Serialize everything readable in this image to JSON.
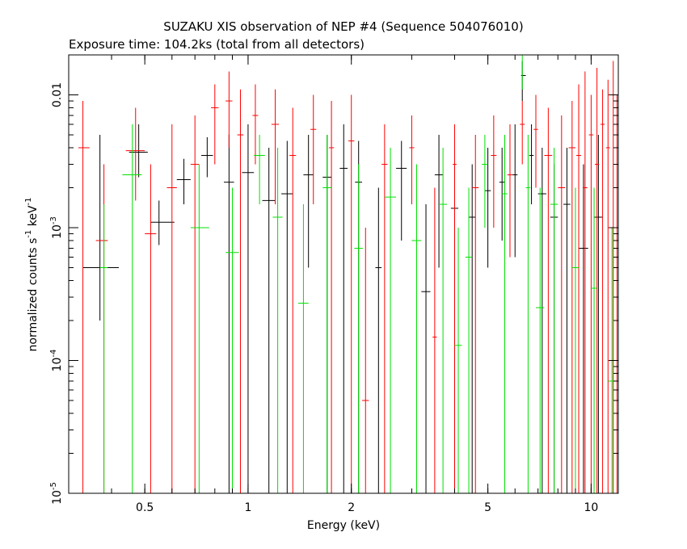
{
  "chart_data": {
    "type": "scatter",
    "title": "SUZAKU XIS observation of NEP #4 (Sequence 504076010)",
    "subtitle": "Exposure time: 104.2ks (total from all detectors)",
    "xlabel": "Energy (keV)",
    "ylabel_parts": [
      "normalized counts s",
      "-1",
      " keV",
      "-1"
    ],
    "xscale": "log",
    "yscale": "log",
    "xlim": [
      0.3,
      12.0
    ],
    "ylim": [
      1e-05,
      0.02
    ],
    "x_major_ticks": [
      {
        "value": 0.5,
        "label": "0.5"
      },
      {
        "value": 1,
        "label": "1"
      },
      {
        "value": 2,
        "label": "2"
      },
      {
        "value": 5,
        "label": "5"
      },
      {
        "value": 10,
        "label": "10"
      }
    ],
    "y_major_ticks": [
      {
        "value": 1e-05,
        "mantissa": "10",
        "exp": "-5"
      },
      {
        "value": 0.0001,
        "mantissa": "10",
        "exp": "-4"
      },
      {
        "value": 0.001,
        "mantissa": "10",
        "exp": "-3"
      },
      {
        "value": 0.01,
        "mantissa": "0.01",
        "exp": ""
      }
    ],
    "series": [
      {
        "color": "#000000",
        "points": [
          [
            0.37,
            0.0005,
            0.33,
            0.42,
            0.0002,
            0.005
          ],
          [
            0.48,
            0.0037,
            0.45,
            0.51,
            0.0024,
            0.006
          ],
          [
            0.55,
            0.0011,
            0.52,
            0.61,
            0.00074,
            0.0016
          ],
          [
            0.65,
            0.0023,
            0.62,
            0.68,
            0.0015,
            0.0033
          ],
          [
            0.76,
            0.0035,
            0.73,
            0.79,
            0.0024,
            0.0048
          ],
          [
            0.88,
            0.0022,
            0.85,
            0.91,
            1e-05,
            0.005
          ],
          [
            1.0,
            0.0026,
            0.96,
            1.04,
            1e-05,
            0.006
          ],
          [
            1.15,
            0.0016,
            1.1,
            1.2,
            1e-05,
            0.004
          ],
          [
            1.3,
            0.0018,
            1.25,
            1.35,
            1e-05,
            0.0045
          ],
          [
            1.5,
            0.0025,
            1.45,
            1.55,
            0.0005,
            0.005
          ],
          [
            1.7,
            0.0024,
            1.65,
            1.75,
            1e-05,
            0.005
          ],
          [
            1.9,
            0.0028,
            1.85,
            1.95,
            1e-05,
            0.006
          ],
          [
            2.1,
            0.0022,
            2.05,
            2.15,
            1e-05,
            0.0045
          ],
          [
            2.4,
            0.0005,
            2.35,
            2.45,
            1e-05,
            0.002
          ],
          [
            2.8,
            0.0028,
            2.7,
            2.9,
            0.0008,
            0.0045
          ],
          [
            3.3,
            0.00033,
            3.2,
            3.4,
            1e-05,
            0.0015
          ],
          [
            3.6,
            0.0025,
            3.5,
            3.7,
            0.0005,
            0.005
          ],
          [
            4.0,
            0.0014,
            3.9,
            4.1,
            1e-05,
            0.003
          ],
          [
            4.5,
            0.0012,
            4.4,
            4.6,
            1e-05,
            0.003
          ],
          [
            5.0,
            0.0019,
            4.9,
            5.1,
            0.0005,
            0.004
          ],
          [
            5.5,
            0.0022,
            5.4,
            5.6,
            0.0008,
            0.004
          ],
          [
            6.0,
            0.0025,
            5.9,
            6.1,
            0.0006,
            0.006
          ],
          [
            6.3,
            0.014,
            6.25,
            6.45,
            0.009,
            0.018
          ],
          [
            6.7,
            0.0035,
            6.6,
            6.8,
            0.0015,
            0.006
          ],
          [
            7.2,
            0.0018,
            7.0,
            7.4,
            1e-05,
            0.004
          ],
          [
            7.8,
            0.0012,
            7.6,
            8.0,
            1e-05,
            0.003
          ],
          [
            8.5,
            0.0015,
            8.3,
            8.7,
            1e-05,
            0.004
          ],
          [
            9.5,
            0.0007,
            9.2,
            9.8,
            1e-05,
            0.003
          ],
          [
            10.5,
            0.0012,
            10.2,
            10.8,
            1e-05,
            0.005
          ]
        ]
      },
      {
        "color": "#ff0000",
        "points": [
          [
            0.33,
            0.004,
            0.32,
            0.345,
            1e-05,
            0.009
          ],
          [
            0.38,
            0.0008,
            0.36,
            0.39,
            1e-05,
            0.003
          ],
          [
            0.47,
            0.0038,
            0.44,
            0.5,
            0.0016,
            0.008
          ],
          [
            0.52,
            0.0009,
            0.5,
            0.54,
            1e-05,
            0.003
          ],
          [
            0.6,
            0.002,
            0.58,
            0.62,
            1e-05,
            0.006
          ],
          [
            0.7,
            0.003,
            0.68,
            0.72,
            1e-05,
            0.007
          ],
          [
            0.8,
            0.008,
            0.78,
            0.82,
            0.003,
            0.012
          ],
          [
            0.88,
            0.009,
            0.86,
            0.9,
            0.004,
            0.015
          ],
          [
            0.95,
            0.005,
            0.93,
            0.97,
            1e-05,
            0.011
          ],
          [
            1.05,
            0.007,
            1.03,
            1.07,
            0.003,
            0.012
          ],
          [
            1.2,
            0.006,
            1.17,
            1.23,
            0.0015,
            0.011
          ],
          [
            1.35,
            0.0035,
            1.32,
            1.38,
            1e-05,
            0.008
          ],
          [
            1.55,
            0.0055,
            1.52,
            1.58,
            0.0015,
            0.01
          ],
          [
            1.75,
            0.004,
            1.72,
            1.78,
            1e-05,
            0.009
          ],
          [
            2.0,
            0.0045,
            1.96,
            2.04,
            1e-05,
            0.01
          ],
          [
            2.2,
            5e-05,
            2.15,
            2.25,
            1e-05,
            0.001
          ],
          [
            2.5,
            0.003,
            2.45,
            2.55,
            1e-05,
            0.006
          ],
          [
            3.0,
            0.004,
            2.95,
            3.05,
            0.0015,
            0.007
          ],
          [
            3.5,
            0.00015,
            3.45,
            3.55,
            1e-05,
            0.002
          ],
          [
            4.0,
            0.003,
            3.95,
            4.05,
            1e-05,
            0.006
          ],
          [
            4.6,
            0.002,
            4.5,
            4.7,
            1e-05,
            0.005
          ],
          [
            5.2,
            0.0035,
            5.1,
            5.3,
            0.001,
            0.007
          ],
          [
            5.8,
            0.0025,
            5.7,
            5.9,
            0.0006,
            0.006
          ],
          [
            6.3,
            0.006,
            6.2,
            6.4,
            0.003,
            0.009
          ],
          [
            6.9,
            0.0055,
            6.8,
            7.0,
            0.002,
            0.01
          ],
          [
            7.5,
            0.0035,
            7.3,
            7.7,
            1e-05,
            0.008
          ],
          [
            8.2,
            0.002,
            8.0,
            8.4,
            1e-05,
            0.007
          ],
          [
            8.8,
            0.004,
            8.6,
            9.0,
            1e-05,
            0.009
          ],
          [
            9.2,
            0.0035,
            9.05,
            9.35,
            1e-05,
            0.012
          ],
          [
            9.6,
            0.002,
            9.45,
            9.75,
            1e-05,
            0.015
          ],
          [
            10.0,
            0.005,
            9.85,
            10.15,
            1e-05,
            0.01
          ],
          [
            10.4,
            0.003,
            10.25,
            10.55,
            1e-05,
            0.016
          ],
          [
            10.8,
            0.006,
            10.65,
            10.95,
            1e-05,
            0.011
          ],
          [
            11.2,
            0.004,
            11.05,
            11.35,
            1e-05,
            0.013
          ],
          [
            11.6,
            0.01,
            11.45,
            11.75,
            1e-05,
            0.018
          ],
          [
            11.9,
            0.007,
            11.8,
            12.0,
            1e-05,
            0.01
          ]
        ]
      },
      {
        "color": "#00e000",
        "points": [
          [
            0.38,
            0.0005,
            0.37,
            0.39,
            1e-05,
            0.0015
          ],
          [
            0.46,
            0.0025,
            0.43,
            0.49,
            1e-05,
            0.006
          ],
          [
            0.72,
            0.001,
            0.68,
            0.77,
            1e-05,
            0.003
          ],
          [
            0.9,
            0.00065,
            0.86,
            0.94,
            1e-05,
            0.002
          ],
          [
            1.08,
            0.0035,
            1.04,
            1.12,
            0.0015,
            0.005
          ],
          [
            1.22,
            0.0012,
            1.18,
            1.26,
            1e-05,
            0.004
          ],
          [
            1.45,
            0.00027,
            1.4,
            1.5,
            1e-05,
            0.0015
          ],
          [
            1.7,
            0.002,
            1.65,
            1.75,
            1e-05,
            0.005
          ],
          [
            2.1,
            0.0007,
            2.04,
            2.16,
            1e-05,
            0.003
          ],
          [
            2.6,
            0.0017,
            2.5,
            2.7,
            1e-05,
            0.004
          ],
          [
            3.1,
            0.0008,
            3.0,
            3.2,
            1e-05,
            0.003
          ],
          [
            3.7,
            0.0015,
            3.6,
            3.8,
            1e-05,
            0.004
          ],
          [
            4.1,
            0.00013,
            4.0,
            4.2,
            1e-05,
            0.001
          ],
          [
            4.4,
            0.0006,
            4.3,
            4.5,
            1e-05,
            0.002
          ],
          [
            4.9,
            0.003,
            4.8,
            5.0,
            0.001,
            0.005
          ],
          [
            5.6,
            0.0018,
            5.5,
            5.7,
            1e-05,
            0.005
          ],
          [
            6.3,
            0.022,
            6.25,
            6.4,
            0.011,
            0.022
          ],
          [
            6.55,
            0.002,
            6.45,
            6.65,
            1e-05,
            0.005
          ],
          [
            7.1,
            0.00025,
            6.9,
            7.3,
            1e-05,
            0.002
          ],
          [
            7.8,
            0.0015,
            7.6,
            8.0,
            1e-05,
            0.004
          ],
          [
            9.0,
            0.0005,
            8.8,
            9.2,
            1e-05,
            0.002
          ],
          [
            10.2,
            0.00035,
            10.0,
            10.4,
            1e-05,
            0.002
          ],
          [
            11.5,
            7e-05,
            11.2,
            11.8,
            1e-05,
            0.001
          ]
        ]
      }
    ]
  }
}
